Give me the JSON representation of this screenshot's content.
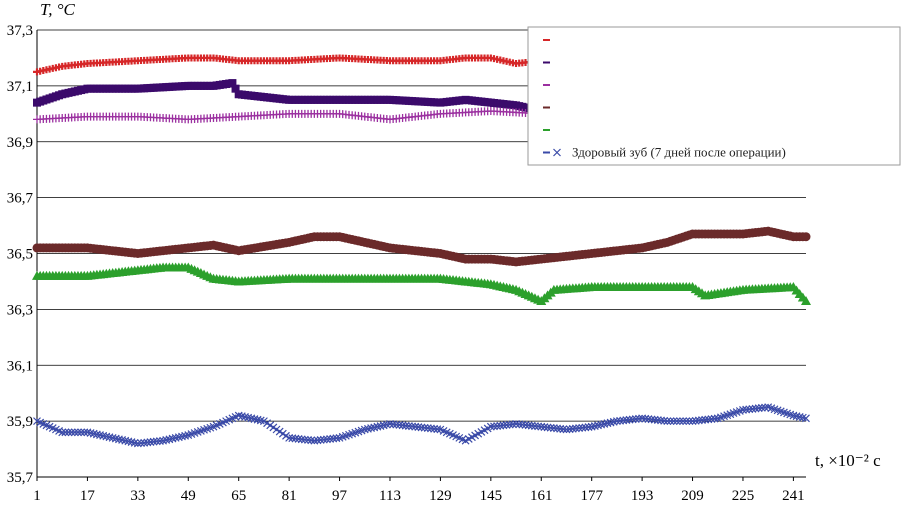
{
  "chart_data": {
    "type": "line",
    "title": "",
    "ylabel": "T,  °C",
    "xlabel": "t,  ×10⁻² с",
    "ylim": [
      35.7,
      37.3
    ],
    "xlim": [
      1,
      245
    ],
    "yticks": [
      "35,7",
      "35,9",
      "36,1",
      "36,3",
      "36,5",
      "36,7",
      "36,9",
      "37,1",
      "37,3"
    ],
    "xticks": [
      "1",
      "17",
      "33",
      "49",
      "65",
      "81",
      "97",
      "113",
      "129",
      "145",
      "161",
      "177",
      "193",
      "209",
      "225",
      "241"
    ],
    "grid": "horizontal",
    "legend": "top-right",
    "legend_visible_text": [
      "",
      "",
      "",
      "",
      "",
      "Здоровый зуб (7 дней после операции)"
    ],
    "series": [
      {
        "color": "#d62728",
        "marker": "dash",
        "x": [
          1,
          9,
          17,
          33,
          49,
          57,
          65,
          81,
          97,
          113,
          129,
          137,
          145,
          153,
          161
        ],
        "y": [
          37.15,
          37.17,
          37.18,
          37.19,
          37.2,
          37.2,
          37.19,
          37.19,
          37.2,
          37.19,
          37.19,
          37.2,
          37.2,
          37.18,
          37.19
        ]
      },
      {
        "color": "#3b0a6b",
        "marker": "square",
        "x": [
          1,
          9,
          17,
          33,
          49,
          57,
          63,
          65,
          81,
          97,
          113,
          129,
          137,
          145,
          153,
          161
        ],
        "y": [
          37.04,
          37.07,
          37.09,
          37.09,
          37.1,
          37.1,
          37.11,
          37.07,
          37.05,
          37.05,
          37.05,
          37.04,
          37.05,
          37.04,
          37.03,
          37.01
        ]
      },
      {
        "color": "#9b30a0",
        "marker": "plus",
        "x": [
          1,
          17,
          33,
          49,
          65,
          81,
          97,
          113,
          129,
          145,
          161
        ],
        "y": [
          36.98,
          36.99,
          36.99,
          36.98,
          36.99,
          37.0,
          37.0,
          36.98,
          37.0,
          37.01,
          37.0
        ]
      },
      {
        "color": "#6b2a2a",
        "marker": "circle",
        "x": [
          1,
          17,
          33,
          49,
          57,
          65,
          81,
          89,
          97,
          105,
          113,
          129,
          137,
          145,
          153,
          161,
          177,
          193,
          201,
          209,
          225,
          233,
          241,
          245
        ],
        "y": [
          36.52,
          36.52,
          36.5,
          36.52,
          36.53,
          36.51,
          36.54,
          36.56,
          36.56,
          36.54,
          36.52,
          36.5,
          36.48,
          36.48,
          36.47,
          36.48,
          36.5,
          36.52,
          36.54,
          36.57,
          36.57,
          36.58,
          36.56,
          36.56
        ]
      },
      {
        "color": "#2ca02c",
        "marker": "triangle",
        "x": [
          1,
          17,
          33,
          41,
          49,
          57,
          65,
          81,
          97,
          113,
          129,
          145,
          153,
          161,
          165,
          177,
          193,
          209,
          213,
          225,
          241,
          245
        ],
        "y": [
          36.42,
          36.42,
          36.44,
          36.45,
          36.45,
          36.41,
          36.4,
          36.41,
          36.41,
          36.41,
          36.41,
          36.39,
          36.37,
          36.33,
          36.37,
          36.38,
          36.38,
          36.38,
          36.35,
          36.37,
          36.38,
          36.33
        ]
      },
      {
        "color": "#3a4aa8",
        "marker": "x",
        "x": [
          1,
          9,
          17,
          25,
          33,
          41,
          49,
          57,
          65,
          73,
          81,
          89,
          97,
          105,
          113,
          121,
          129,
          137,
          145,
          153,
          161,
          169,
          177,
          185,
          193,
          201,
          209,
          217,
          225,
          233,
          241,
          245
        ],
        "y": [
          35.9,
          35.86,
          35.86,
          35.84,
          35.82,
          35.83,
          35.85,
          35.88,
          35.92,
          35.9,
          35.84,
          35.83,
          35.84,
          35.87,
          35.89,
          35.88,
          35.87,
          35.83,
          35.88,
          35.89,
          35.88,
          35.87,
          35.88,
          35.9,
          35.91,
          35.9,
          35.9,
          35.91,
          35.94,
          35.95,
          35.92,
          35.91
        ]
      }
    ]
  }
}
